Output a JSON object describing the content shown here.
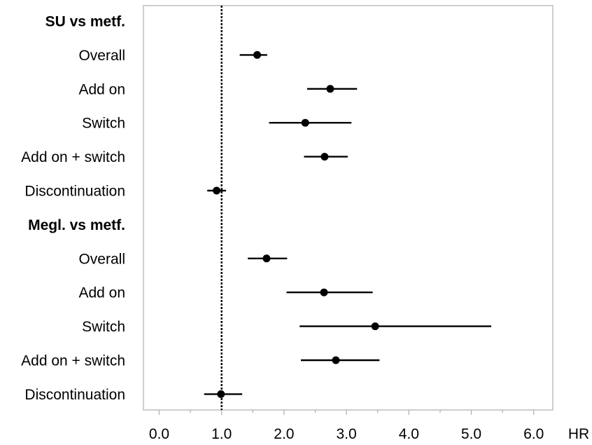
{
  "chart_data": {
    "type": "forest",
    "xlabel": "HR",
    "xlim": [
      -0.25,
      6.3
    ],
    "ticks": [
      0.0,
      1.0,
      2.0,
      3.0,
      4.0,
      5.0,
      6.0
    ],
    "tick_labels": [
      "0.0",
      "1.0",
      "2.0",
      "3.0",
      "4.0",
      "5.0",
      "6.0"
    ],
    "minor_ticks": [
      0.5,
      1.5,
      2.5,
      3.5,
      4.5,
      5.5
    ],
    "reference_line": 1.0,
    "rows": [
      {
        "label": "SU vs metf.",
        "group": true
      },
      {
        "label": "Overall",
        "hr": 1.57,
        "lo": 1.29,
        "hi": 1.73
      },
      {
        "label": "Add on",
        "hr": 2.74,
        "lo": 2.37,
        "hi": 3.17
      },
      {
        "label": "Switch",
        "hr": 2.34,
        "lo": 1.76,
        "hi": 3.08
      },
      {
        "label": "Add on + switch",
        "hr": 2.65,
        "lo": 2.32,
        "hi": 3.02
      },
      {
        "label": "Discontinuation",
        "hr": 0.92,
        "lo": 0.77,
        "hi": 1.07
      },
      {
        "label": "Megl. vs metf.",
        "group": true
      },
      {
        "label": "Overall",
        "hr": 1.72,
        "lo": 1.42,
        "hi": 2.05
      },
      {
        "label": "Add on",
        "hr": 2.64,
        "lo": 2.04,
        "hi": 3.42
      },
      {
        "label": "Switch",
        "hr": 3.46,
        "lo": 2.25,
        "hi": 5.32
      },
      {
        "label": "Add on + switch",
        "hr": 2.83,
        "lo": 2.27,
        "hi": 3.53
      },
      {
        "label": "Discontinuation",
        "hr": 0.99,
        "lo": 0.72,
        "hi": 1.33
      }
    ]
  }
}
